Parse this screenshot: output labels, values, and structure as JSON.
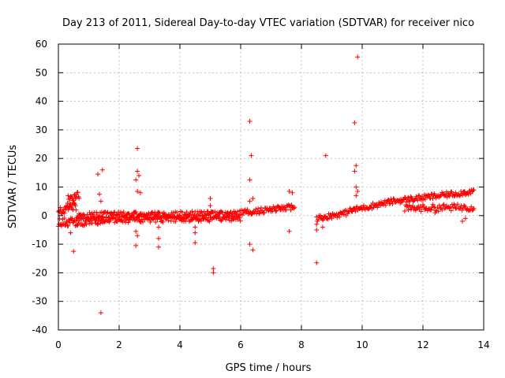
{
  "chart_data": {
    "type": "scatter",
    "title": "Day 213 of 2011, Sidereal Day-to-day VTEC variation (SDTVAR) for receiver nico",
    "xlabel": "GPS time / hours",
    "ylabel": "SDTVAR / TECUs",
    "xlim": [
      0,
      14
    ],
    "ylim": [
      -40,
      60
    ],
    "xticks": [
      0,
      2,
      4,
      6,
      8,
      10,
      12,
      14
    ],
    "yticks": [
      -40,
      -30,
      -20,
      -10,
      0,
      10,
      20,
      30,
      40,
      50,
      60
    ],
    "grid": true,
    "marker": "+",
    "color": "#ff0000",
    "series": [
      {
        "name": "SDTVAR",
        "bands": [
          {
            "x0": 0.0,
            "x1": 0.6,
            "y0": 1.5,
            "y1": 3.5,
            "spread": 1.5,
            "step": 0.02
          },
          {
            "x0": 0.0,
            "x1": 1.5,
            "y0": -2.5,
            "y1": -1.5,
            "spread": 1.5,
            "step": 0.02
          },
          {
            "x0": 0.3,
            "x1": 0.7,
            "y0": 5.5,
            "y1": 7.5,
            "spread": 1.5,
            "step": 0.02
          },
          {
            "x0": 0.6,
            "x1": 6.0,
            "y0": 0.0,
            "y1": 0.5,
            "spread": 1.2,
            "step": 0.025
          },
          {
            "x0": 1.4,
            "x1": 6.0,
            "y0": -1.5,
            "y1": -1.0,
            "spread": 1.0,
            "step": 0.03
          },
          {
            "x0": 6.0,
            "x1": 7.8,
            "y0": 1.0,
            "y1": 3.0,
            "spread": 1.0,
            "step": 0.025
          },
          {
            "x0": 8.5,
            "x1": 9.5,
            "y0": -1.0,
            "y1": 1.0,
            "spread": 1.0,
            "step": 0.025
          },
          {
            "x0": 9.5,
            "x1": 11.0,
            "y0": 1.5,
            "y1": 5.0,
            "spread": 1.0,
            "step": 0.025
          },
          {
            "x0": 11.0,
            "x1": 13.7,
            "y0": 5.0,
            "y1": 8.5,
            "spread": 1.0,
            "step": 0.025
          },
          {
            "x0": 11.4,
            "x1": 13.7,
            "y0": 2.5,
            "y1": 3.0,
            "spread": 1.2,
            "step": 0.03
          }
        ],
        "points": [
          [
            0.5,
            -12.5
          ],
          [
            0.4,
            -6.0
          ],
          [
            1.4,
            -34.0
          ],
          [
            1.3,
            14.5
          ],
          [
            1.45,
            16.0
          ],
          [
            1.35,
            7.5
          ],
          [
            1.4,
            5.0
          ],
          [
            2.6,
            23.5
          ],
          [
            2.6,
            15.5
          ],
          [
            2.65,
            14.0
          ],
          [
            2.55,
            12.5
          ],
          [
            2.6,
            8.5
          ],
          [
            2.7,
            8.0
          ],
          [
            2.55,
            -5.5
          ],
          [
            2.6,
            -7.0
          ],
          [
            2.55,
            -10.5
          ],
          [
            3.3,
            -8.0
          ],
          [
            3.3,
            -11.0
          ],
          [
            3.3,
            -4.0
          ],
          [
            4.5,
            -9.5
          ],
          [
            4.5,
            -6.0
          ],
          [
            4.5,
            -4.0
          ],
          [
            5.0,
            6.0
          ],
          [
            5.0,
            3.5
          ],
          [
            5.1,
            -18.5
          ],
          [
            5.1,
            -20.0
          ],
          [
            6.3,
            33.0
          ],
          [
            6.35,
            21.0
          ],
          [
            6.3,
            12.5
          ],
          [
            6.4,
            6.0
          ],
          [
            6.3,
            5.0
          ],
          [
            6.3,
            -10.0
          ],
          [
            6.4,
            -12.0
          ],
          [
            7.6,
            8.5
          ],
          [
            7.7,
            8.0
          ],
          [
            7.6,
            -5.5
          ],
          [
            8.5,
            -16.5
          ],
          [
            8.5,
            -5.0
          ],
          [
            8.5,
            -3.0
          ],
          [
            8.8,
            21.0
          ],
          [
            8.7,
            -4.0
          ],
          [
            9.85,
            55.5
          ],
          [
            9.75,
            32.5
          ],
          [
            9.8,
            17.5
          ],
          [
            9.75,
            15.5
          ],
          [
            9.8,
            10.0
          ],
          [
            9.85,
            8.5
          ],
          [
            9.8,
            7.0
          ],
          [
            12.4,
            1.0
          ],
          [
            13.4,
            -1.0
          ],
          [
            13.3,
            -2.0
          ]
        ]
      }
    ]
  }
}
